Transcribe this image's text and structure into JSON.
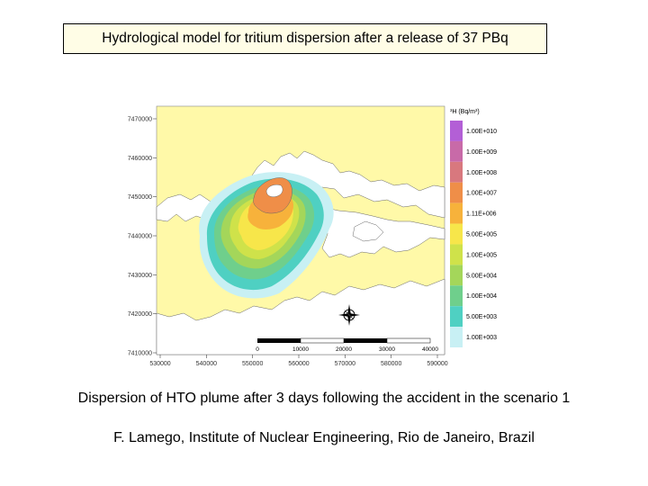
{
  "title": "Hydrological model for tritium dispersion after a release of 37 PBq",
  "map": {
    "legend_title": "³H (Bq/m³)",
    "legend": [
      {
        "label": "1.00E+010",
        "color": "#b35fd6"
      },
      {
        "label": "1.00E+009",
        "color": "#c86aa8"
      },
      {
        "label": "1.00E+008",
        "color": "#d8787e"
      },
      {
        "label": "1.00E+007",
        "color": "#ef8e48"
      },
      {
        "label": "1.11E+006",
        "color": "#f7b23b"
      },
      {
        "label": "5.00E+005",
        "color": "#f7e64a"
      },
      {
        "label": "1.00E+005",
        "color": "#cfe24a"
      },
      {
        "label": "5.00E+004",
        "color": "#a4d65a"
      },
      {
        "label": "1.00E+004",
        "color": "#6fcf8c"
      },
      {
        "label": "5.00E+003",
        "color": "#4fd0c2"
      },
      {
        "label": "1.00E+003",
        "color": "#c8f0f4"
      }
    ],
    "y_ticks": [
      "7470000",
      "7460000",
      "7450000",
      "7440000",
      "7430000",
      "7420000",
      "7410000"
    ],
    "x_ticks": [
      "530000",
      "540000",
      "550000",
      "560000",
      "570000",
      "580000",
      "590000"
    ],
    "scale_labels": [
      "0",
      "10000",
      "20000",
      "30000",
      "40000"
    ],
    "colors": {
      "sea": "#fff9a8",
      "land": "#ffffff",
      "background": "#fff9a8"
    }
  },
  "captions": {
    "line1": "Dispersion of HTO plume after 3 days following the accident in the scenario 1",
    "line2": "F. Lamego, Institute of Nuclear Engineering, Rio de Janeiro, Brazil"
  }
}
